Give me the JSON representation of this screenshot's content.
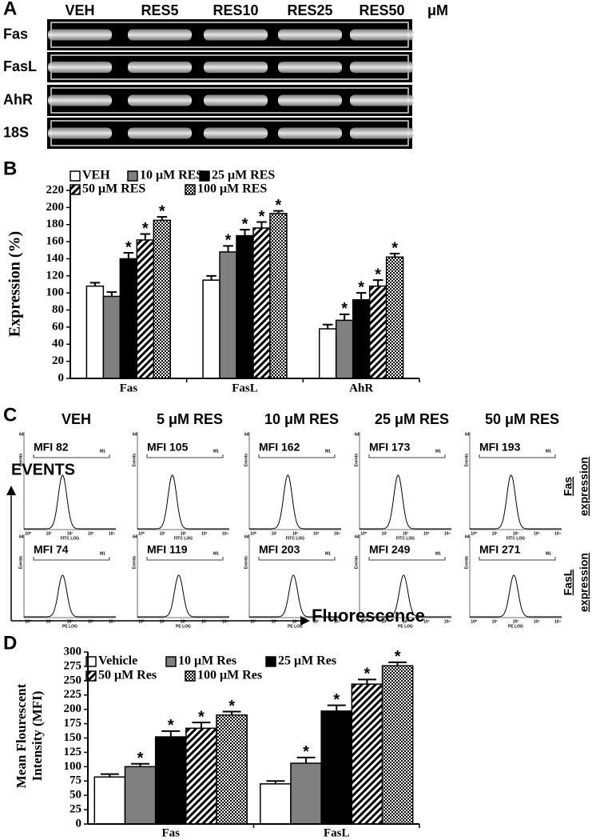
{
  "panel_a": {
    "label": "A",
    "lanes": [
      "VEH",
      "RES5",
      "RES10",
      "RES25",
      "RES50"
    ],
    "unit": "μM",
    "rows": [
      "Fas",
      "FasL",
      "AhR",
      "18S"
    ]
  },
  "panel_b_label": "B",
  "panel_c": {
    "label": "C",
    "columns": [
      "VEH",
      "5 μM RES",
      "10 μM RES",
      "25 μM RES",
      "50 μM RES"
    ],
    "y_label": "EVENTS",
    "x_label": "Fluorescence",
    "row_labels": [
      {
        "gene": "Fas",
        "word": "expression"
      },
      {
        "gene": "FasL",
        "word": "expression"
      }
    ],
    "mfi": [
      [
        "MFI 82",
        "MFI 105",
        "MFI 162",
        "MFI 173",
        "MFI 193"
      ],
      [
        "MFI 74",
        "MFI 119",
        "MFI 203",
        "MFI 249",
        "MFI 271"
      ]
    ],
    "plot_y_max": "64",
    "plot_y_label": "Events",
    "marker": "M1",
    "plot_x_ticks": [
      "10⁰",
      "10¹",
      "10²",
      "10³",
      "10⁴"
    ],
    "plot_x_labels": [
      "FITC LOG",
      "PE LOG"
    ]
  },
  "panel_d_label": "D",
  "chart_data": [
    {
      "type": "bar",
      "y_label": [
        "Expression (%)"
      ],
      "categories": [
        "Fas",
        "FasL",
        "AhR"
      ],
      "series": [
        {
          "name": "VEH",
          "color": "#ffffff",
          "values": [
            108,
            115,
            58
          ],
          "errors": [
            4,
            5,
            5
          ],
          "significance": [
            null,
            null,
            null
          ]
        },
        {
          "name": "10 μM RES",
          "color": "#808080",
          "values": [
            96,
            148,
            68
          ],
          "errors": [
            5,
            7,
            7
          ],
          "significance": [
            null,
            "*",
            "*"
          ]
        },
        {
          "name": "25 μM RES",
          "color": "#000000",
          "values": [
            140,
            167,
            92
          ],
          "errors": [
            7,
            7,
            8
          ],
          "significance": [
            "*",
            "*",
            "*"
          ]
        },
        {
          "name": "50 μM RES",
          "color": "#000000",
          "pattern": "hatch",
          "values": [
            162,
            176,
            108
          ],
          "errors": [
            7,
            7,
            7
          ],
          "significance": [
            "*",
            "*",
            "*"
          ]
        },
        {
          "name": "100 μM RES",
          "color": "#000000",
          "pattern": "checker",
          "values": [
            185,
            193,
            142
          ],
          "errors": [
            4,
            3,
            4
          ],
          "significance": [
            "*",
            "*",
            "*"
          ]
        }
      ],
      "ylim": [
        0,
        220
      ],
      "yticks": [
        0,
        20,
        40,
        60,
        80,
        100,
        120,
        140,
        160,
        180,
        200,
        220
      ]
    },
    {
      "type": "bar",
      "y_label": [
        "Mean Flourescent",
        "Intensity (MFI)"
      ],
      "categories": [
        "Fas",
        "FasL"
      ],
      "series": [
        {
          "name": "Vehicle",
          "color": "#ffffff",
          "values": [
            82,
            70
          ],
          "errors": [
            5,
            5
          ],
          "significance": [
            null,
            null
          ]
        },
        {
          "name": "10 μM Res",
          "color": "#808080",
          "values": [
            100,
            106
          ],
          "errors": [
            5,
            10
          ],
          "significance": [
            "*",
            "*"
          ]
        },
        {
          "name": "25 μM Res",
          "color": "#000000",
          "values": [
            152,
            197
          ],
          "errors": [
            10,
            10
          ],
          "significance": [
            "*",
            "*"
          ]
        },
        {
          "name": "50 μM Res",
          "color": "#000000",
          "pattern": "hatch",
          "values": [
            167,
            244
          ],
          "errors": [
            10,
            8
          ],
          "significance": [
            "*",
            "*"
          ]
        },
        {
          "name": "100 μM Res",
          "color": "#000000",
          "pattern": "checker",
          "values": [
            190,
            276
          ],
          "errors": [
            6,
            6
          ],
          "significance": [
            "*",
            "*"
          ]
        }
      ],
      "ylim": [
        0,
        300
      ],
      "yticks": [
        0,
        25,
        50,
        75,
        100,
        125,
        150,
        175,
        200,
        225,
        250,
        275,
        300
      ]
    }
  ]
}
